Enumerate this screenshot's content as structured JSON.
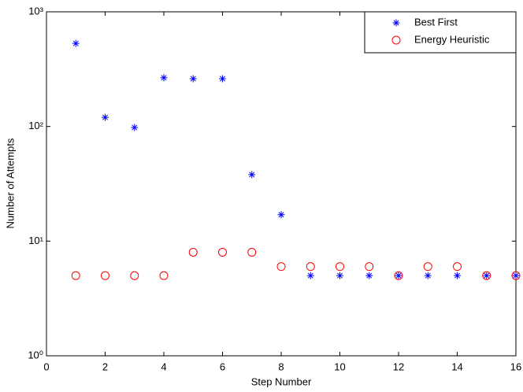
{
  "chart_data": {
    "type": "scatter",
    "x_label": "Step Number",
    "y_label": "Number of Attempts",
    "xlim": [
      0,
      16
    ],
    "xticks": [
      0,
      2,
      4,
      6,
      8,
      10,
      12,
      14,
      16
    ],
    "ylim": [
      1,
      1000
    ],
    "yticks": [
      {
        "value": 1,
        "label": "10⁰"
      },
      {
        "value": 10,
        "label": "10¹"
      },
      {
        "value": 100,
        "label": "10²"
      },
      {
        "value": 1000,
        "label": "10³"
      }
    ],
    "y_scale": "log",
    "legend_position": "upper right",
    "series": [
      {
        "name": "Best First",
        "color": "#0000ff",
        "marker": "asterisk",
        "x": [
          1,
          2,
          3,
          4,
          5,
          6,
          7,
          8,
          9,
          10,
          11,
          12,
          13,
          14,
          15,
          16
        ],
        "values": [
          530,
          120,
          98,
          266,
          261,
          261,
          38,
          17,
          5,
          5,
          5,
          5,
          5,
          5,
          5,
          5
        ]
      },
      {
        "name": "Energy Heuristic",
        "color": "#ff0000",
        "marker": "circle",
        "x": [
          1,
          2,
          3,
          4,
          5,
          6,
          7,
          8,
          9,
          10,
          11,
          12,
          13,
          14,
          15,
          16
        ],
        "values": [
          5,
          5,
          5,
          5,
          8,
          8,
          8,
          6,
          6,
          6,
          6,
          5,
          6,
          6,
          5,
          5
        ]
      }
    ]
  }
}
